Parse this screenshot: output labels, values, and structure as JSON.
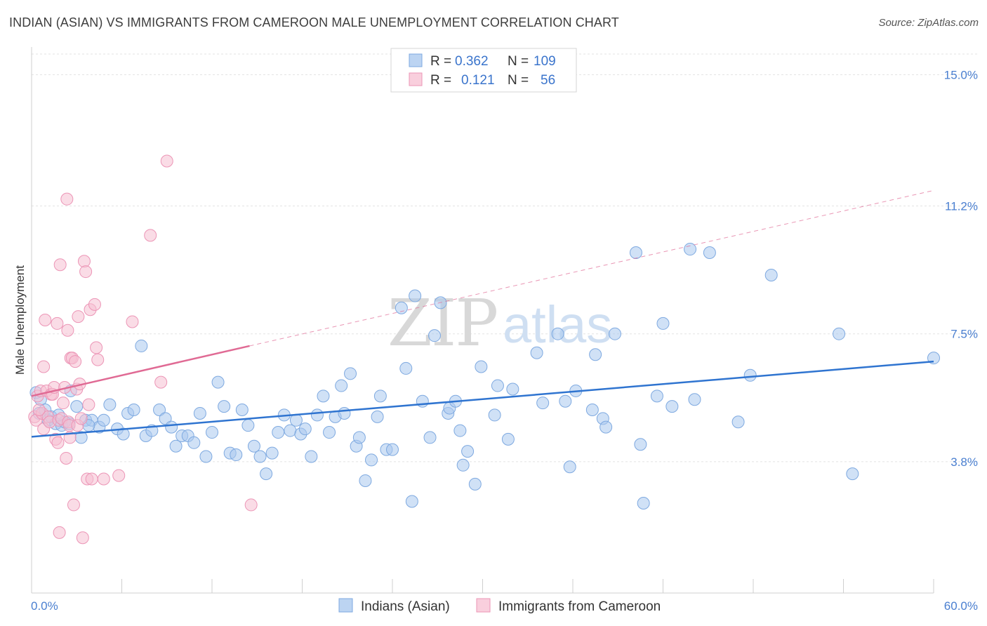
{
  "header": {
    "title": "INDIAN (ASIAN) VS IMMIGRANTS FROM CAMEROON MALE UNEMPLOYMENT CORRELATION CHART",
    "source": "Source: ZipAtlas.com"
  },
  "watermark": {
    "zip": "ZIP",
    "atlas": "atlas"
  },
  "chart_data": {
    "type": "scatter",
    "title": "INDIAN (ASIAN) VS IMMIGRANTS FROM CAMEROON MALE UNEMPLOYMENT CORRELATION CHART",
    "xlabel": "",
    "ylabel": "Male Unemployment",
    "xlim": [
      0,
      60
    ],
    "ylim": [
      0,
      15.8
    ],
    "x_tick_labels": {
      "min": "0.0%",
      "max": "60.0%"
    },
    "y_ticks": [
      {
        "value": 3.8,
        "label": "3.8%"
      },
      {
        "value": 7.5,
        "label": "7.5%"
      },
      {
        "value": 11.2,
        "label": "11.2%"
      },
      {
        "value": 15.0,
        "label": "15.0%"
      }
    ],
    "grid": true,
    "legend": {
      "placement": "top-center",
      "entries": [
        {
          "r_label": "R =",
          "r_value": "0.362",
          "n_label": "N =",
          "n_value": "109"
        },
        {
          "r_label": "R =",
          "r_value": "0.121",
          "n_label": "N =",
          "n_value": "56"
        }
      ]
    },
    "bottom_legend": [
      "Indians (Asian)",
      "Immigrants from Cameroon"
    ],
    "colors": {
      "blue_fill": "#a9c8ef",
      "blue_stroke": "#7ea9e0",
      "blue_line": "#2f74d0",
      "pink_fill": "#f6bfd2",
      "pink_stroke": "#ec95b6",
      "pink_line": "#e06a94",
      "grid": "#e3e3e3",
      "axis": "#cfcfcf"
    },
    "series": [
      {
        "name": "Indians (Asian)",
        "color": "#a9c8ef",
        "trend": {
          "x0": 0,
          "y0": 4.52,
          "x1": 60,
          "y1": 6.7,
          "style": "solid"
        },
        "points": [
          [
            0.3,
            5.8
          ],
          [
            0.6,
            5.6
          ],
          [
            0.9,
            5.3
          ],
          [
            1.1,
            5.0
          ],
          [
            1.3,
            5.1
          ],
          [
            1.6,
            4.9
          ],
          [
            2.0,
            4.85
          ],
          [
            2.2,
            4.95
          ],
          [
            2.5,
            4.9
          ],
          [
            2.6,
            5.85
          ],
          [
            3.0,
            5.4
          ],
          [
            3.3,
            4.5
          ],
          [
            3.6,
            5.0
          ],
          [
            4.0,
            5.0
          ],
          [
            4.5,
            4.8
          ],
          [
            4.8,
            5.0
          ],
          [
            5.2,
            5.45
          ],
          [
            5.7,
            4.75
          ],
          [
            6.1,
            4.6
          ],
          [
            6.4,
            5.2
          ],
          [
            6.8,
            5.3
          ],
          [
            7.3,
            7.15
          ],
          [
            7.6,
            4.55
          ],
          [
            8.0,
            4.7
          ],
          [
            8.5,
            5.3
          ],
          [
            8.9,
            5.05
          ],
          [
            9.3,
            4.8
          ],
          [
            9.6,
            4.25
          ],
          [
            10.0,
            4.55
          ],
          [
            10.4,
            4.55
          ],
          [
            10.8,
            4.35
          ],
          [
            11.2,
            5.2
          ],
          [
            11.6,
            3.95
          ],
          [
            12.0,
            4.65
          ],
          [
            12.4,
            6.1
          ],
          [
            12.8,
            5.4
          ],
          [
            13.2,
            4.05
          ],
          [
            13.6,
            4.0
          ],
          [
            14.0,
            5.3
          ],
          [
            14.4,
            4.85
          ],
          [
            14.8,
            4.25
          ],
          [
            15.2,
            3.95
          ],
          [
            15.6,
            3.45
          ],
          [
            16.0,
            4.05
          ],
          [
            16.4,
            4.65
          ],
          [
            16.8,
            5.15
          ],
          [
            17.2,
            4.7
          ],
          [
            17.6,
            5.0
          ],
          [
            17.9,
            4.6
          ],
          [
            18.2,
            4.75
          ],
          [
            18.6,
            3.95
          ],
          [
            19.0,
            5.15
          ],
          [
            19.4,
            5.7
          ],
          [
            19.8,
            4.65
          ],
          [
            20.2,
            5.1
          ],
          [
            20.6,
            6.0
          ],
          [
            20.8,
            5.2
          ],
          [
            21.2,
            6.35
          ],
          [
            21.6,
            4.25
          ],
          [
            21.8,
            4.5
          ],
          [
            22.2,
            3.25
          ],
          [
            22.6,
            3.85
          ],
          [
            23.0,
            5.1
          ],
          [
            23.2,
            5.7
          ],
          [
            23.6,
            4.15
          ],
          [
            24.0,
            4.15
          ],
          [
            24.6,
            8.25
          ],
          [
            24.9,
            6.5
          ],
          [
            25.3,
            2.65
          ],
          [
            25.5,
            8.6
          ],
          [
            26.0,
            5.55
          ],
          [
            26.5,
            4.5
          ],
          [
            26.8,
            7.45
          ],
          [
            27.2,
            8.4
          ],
          [
            27.7,
            5.2
          ],
          [
            27.8,
            5.35
          ],
          [
            28.2,
            5.55
          ],
          [
            28.5,
            4.7
          ],
          [
            28.7,
            3.7
          ],
          [
            29.0,
            4.1
          ],
          [
            29.5,
            3.15
          ],
          [
            29.9,
            6.55
          ],
          [
            30.8,
            5.15
          ],
          [
            31.0,
            6.0
          ],
          [
            31.7,
            4.45
          ],
          [
            32.0,
            5.9
          ],
          [
            33.6,
            6.95
          ],
          [
            34.0,
            5.5
          ],
          [
            35.0,
            7.5
          ],
          [
            35.5,
            5.55
          ],
          [
            35.8,
            3.65
          ],
          [
            36.2,
            5.85
          ],
          [
            37.3,
            5.3
          ],
          [
            37.5,
            6.9
          ],
          [
            38.0,
            5.05
          ],
          [
            38.2,
            4.8
          ],
          [
            38.8,
            7.5
          ],
          [
            40.2,
            9.85
          ],
          [
            40.5,
            4.3
          ],
          [
            40.7,
            2.6
          ],
          [
            41.6,
            5.7
          ],
          [
            42.0,
            7.8
          ],
          [
            42.6,
            5.4
          ],
          [
            43.8,
            9.95
          ],
          [
            44.1,
            5.6
          ],
          [
            45.1,
            9.85
          ],
          [
            47.0,
            4.95
          ],
          [
            47.8,
            6.3
          ],
          [
            49.2,
            9.2
          ],
          [
            53.7,
            7.5
          ],
          [
            54.6,
            3.45
          ],
          [
            60.0,
            6.8
          ],
          [
            0.5,
            5.2
          ],
          [
            3.8,
            4.85
          ],
          [
            1.8,
            5.15
          ]
        ]
      },
      {
        "name": "Immigrants from Cameroon",
        "color": "#f6bfd2",
        "trend": {
          "x0": 0,
          "y0": 5.7,
          "x1": 14.5,
          "y1": 7.15,
          "style": "solid",
          "extend_to": [
            60,
            11.65
          ],
          "extend_style": "dashed"
        },
        "points": [
          [
            0.2,
            5.1
          ],
          [
            0.3,
            5.0
          ],
          [
            0.4,
            5.7
          ],
          [
            0.6,
            5.85
          ],
          [
            0.7,
            5.2
          ],
          [
            0.8,
            4.75
          ],
          [
            0.8,
            6.55
          ],
          [
            0.9,
            7.9
          ],
          [
            1.0,
            5.85
          ],
          [
            1.1,
            5.1
          ],
          [
            1.2,
            4.95
          ],
          [
            1.3,
            5.75
          ],
          [
            1.4,
            5.75
          ],
          [
            1.5,
            5.95
          ],
          [
            1.6,
            4.45
          ],
          [
            1.7,
            7.8
          ],
          [
            1.75,
            4.35
          ],
          [
            1.8,
            5.0
          ],
          [
            1.85,
            1.75
          ],
          [
            1.9,
            9.5
          ],
          [
            2.0,
            5.05
          ],
          [
            2.1,
            5.5
          ],
          [
            2.2,
            5.95
          ],
          [
            2.3,
            3.9
          ],
          [
            2.35,
            11.4
          ],
          [
            2.4,
            7.6
          ],
          [
            2.45,
            4.95
          ],
          [
            2.5,
            4.85
          ],
          [
            2.55,
            4.5
          ],
          [
            2.6,
            6.8
          ],
          [
            2.7,
            6.8
          ],
          [
            2.8,
            2.55
          ],
          [
            2.9,
            6.7
          ],
          [
            3.0,
            5.9
          ],
          [
            3.05,
            4.85
          ],
          [
            3.1,
            8.0
          ],
          [
            3.2,
            6.05
          ],
          [
            3.3,
            5.05
          ],
          [
            3.4,
            1.6
          ],
          [
            3.5,
            9.6
          ],
          [
            3.6,
            9.3
          ],
          [
            3.7,
            3.3
          ],
          [
            3.8,
            5.45
          ],
          [
            3.9,
            8.2
          ],
          [
            4.0,
            3.3
          ],
          [
            4.2,
            8.35
          ],
          [
            4.3,
            7.1
          ],
          [
            4.4,
            6.75
          ],
          [
            4.8,
            3.3
          ],
          [
            5.8,
            3.4
          ],
          [
            6.7,
            7.85
          ],
          [
            7.9,
            10.35
          ],
          [
            8.6,
            6.1
          ],
          [
            9.0,
            12.5
          ],
          [
            14.6,
            2.55
          ],
          [
            0.5,
            5.3
          ]
        ]
      }
    ]
  }
}
